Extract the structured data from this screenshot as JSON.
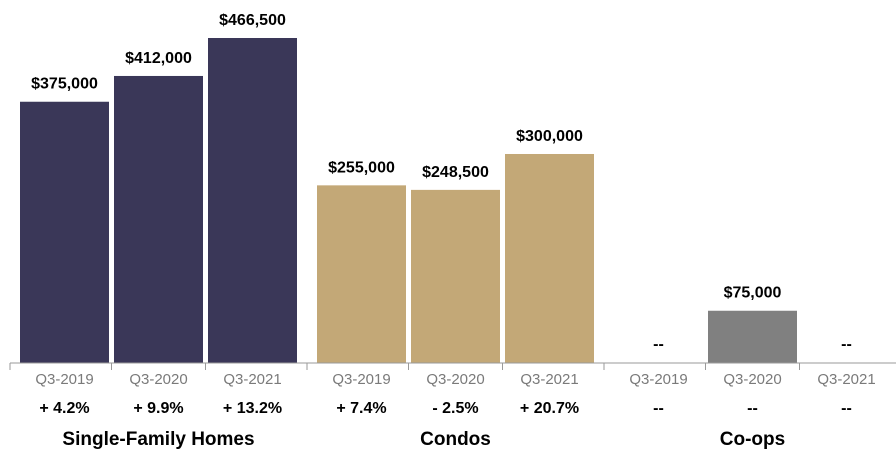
{
  "chart_data": {
    "type": "bar",
    "title": "",
    "xlabel": "",
    "ylabel": "",
    "ylim": [
      0,
      466500
    ],
    "grid": false,
    "legend": "none",
    "groups": [
      {
        "name": "Single-Family Homes",
        "color": "#3a3758",
        "bars": [
          {
            "period": "Q3-2019",
            "value": 375000,
            "value_label": "$375,000",
            "change": "+ 4.2%"
          },
          {
            "period": "Q3-2020",
            "value": 412000,
            "value_label": "$412,000",
            "change": "+ 9.9%"
          },
          {
            "period": "Q3-2021",
            "value": 466500,
            "value_label": "$466,500",
            "change": "+ 13.2%"
          }
        ]
      },
      {
        "name": "Condos",
        "color": "#c3a877",
        "bars": [
          {
            "period": "Q3-2019",
            "value": 255000,
            "value_label": "$255,000",
            "change": "+ 7.4%"
          },
          {
            "period": "Q3-2020",
            "value": 248500,
            "value_label": "$248,500",
            "change": "- 2.5%"
          },
          {
            "period": "Q3-2021",
            "value": 300000,
            "value_label": "$300,000",
            "change": "+ 20.7%"
          }
        ]
      },
      {
        "name": "Co-ops",
        "color": "#808080",
        "bars": [
          {
            "period": "Q3-2019",
            "value": null,
            "value_label": "--",
            "change": "--"
          },
          {
            "period": "Q3-2020",
            "value": 75000,
            "value_label": "$75,000",
            "change": "--"
          },
          {
            "period": "Q3-2021",
            "value": null,
            "value_label": "--",
            "change": "--"
          }
        ]
      }
    ]
  }
}
